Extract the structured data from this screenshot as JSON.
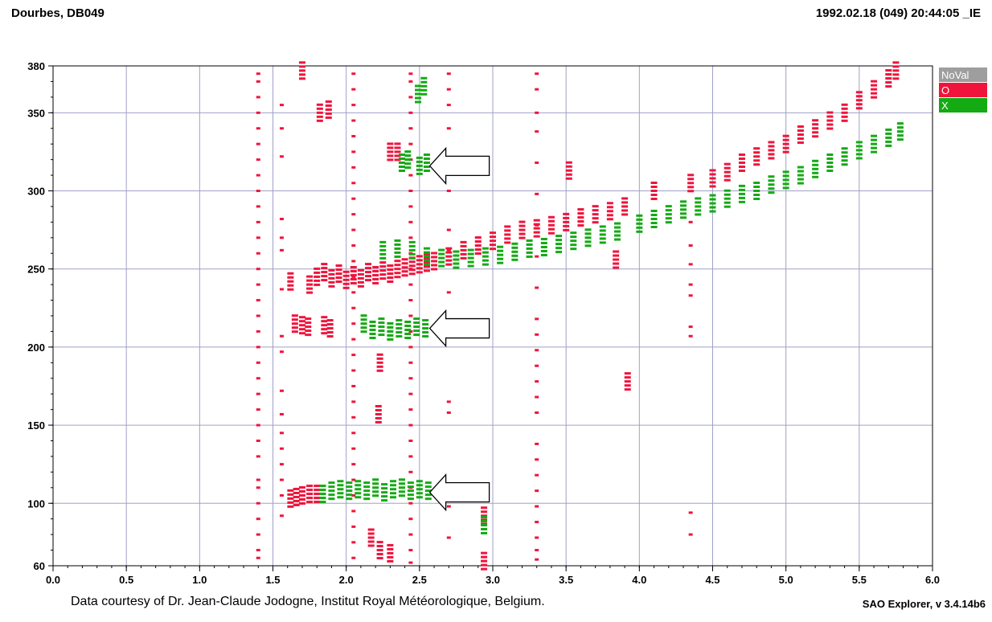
{
  "header": {
    "station": "Dourbes, DB049",
    "datetime": "1992.02.18 (049) 20:44:05 _IE"
  },
  "footer": {
    "credit": "Data courtesy of Dr. Jean-Claude Jodogne, Institut Royal Météorologique, Belgium.",
    "version": "SAO Explorer, v 3.4.14b6"
  },
  "legend": [
    {
      "label": "NoVal",
      "color": "#9e9e9e"
    },
    {
      "label": "O",
      "color": "#f0143c"
    },
    {
      "label": "X",
      "color": "#14aa14"
    }
  ],
  "chart_data": {
    "type": "scatter",
    "title": "",
    "xlabel": "",
    "ylabel": "",
    "xlim": [
      0.0,
      6.0
    ],
    "ylim": [
      60,
      380
    ],
    "x_ticks": [
      "0.0",
      "0.5",
      "1.0",
      "1.5",
      "2.0",
      "2.5",
      "3.0",
      "3.5",
      "4.0",
      "4.5",
      "5.0",
      "5.5",
      "6.0"
    ],
    "y_ticks": [
      "60",
      "100",
      "150",
      "200",
      "250",
      "300",
      "350",
      "380"
    ],
    "grid": true,
    "legend_position": "top-right outside",
    "vertical_traces_O": [
      {
        "x": 1.4,
        "h": [
          65,
          70,
          80,
          90,
          100,
          110,
          115,
          130,
          140,
          150,
          160,
          170,
          180,
          190,
          200,
          210,
          220,
          230,
          240,
          250,
          260,
          270,
          280,
          290,
          300,
          310,
          320,
          330,
          340,
          350,
          360,
          370,
          375
        ]
      },
      {
        "x": 1.56,
        "h": [
          92,
          105,
          115,
          125,
          135,
          145,
          157,
          172,
          197,
          207,
          237,
          262,
          270,
          282,
          322,
          340,
          355
        ]
      },
      {
        "x": 2.05,
        "h": [
          65,
          75,
          85,
          95,
          105,
          115,
          125,
          135,
          145,
          155,
          165,
          175,
          185,
          195,
          205,
          215,
          225,
          235,
          245,
          255,
          265,
          275,
          285,
          295,
          305,
          315,
          325,
          335,
          345,
          355,
          365,
          375
        ]
      },
      {
        "x": 2.44,
        "h": [
          62,
          70,
          80,
          90,
          100,
          110,
          120,
          130,
          140,
          150,
          160,
          170,
          180,
          190,
          200,
          210,
          220,
          230,
          240,
          250,
          260,
          270,
          280,
          290,
          300,
          310,
          320,
          330,
          340,
          350,
          360,
          370,
          375
        ]
      },
      {
        "x": 2.7,
        "h": [
          78,
          98,
          158,
          165,
          235,
          262,
          275,
          300,
          320,
          340,
          355,
          365,
          375
        ]
      },
      {
        "x": 3.3,
        "h": [
          64,
          70,
          78,
          88,
          98,
          108,
          118,
          128,
          138,
          158,
          168,
          178,
          188,
          198,
          208,
          218,
          238,
          258,
          278,
          298,
          318,
          338,
          350,
          365,
          375
        ]
      },
      {
        "x": 4.35,
        "h": [
          80,
          94,
          207,
          213,
          233,
          240,
          253,
          265,
          280
        ]
      }
    ],
    "series": [
      {
        "name": "O",
        "color": "#f0143c",
        "points": [
          {
            "x": 1.75,
            "y": 240
          },
          {
            "x": 1.8,
            "y": 245
          },
          {
            "x": 1.85,
            "y": 248
          },
          {
            "x": 1.9,
            "y": 244
          },
          {
            "x": 1.95,
            "y": 247
          },
          {
            "x": 2.0,
            "y": 243
          },
          {
            "x": 2.05,
            "y": 246
          },
          {
            "x": 2.1,
            "y": 244
          },
          {
            "x": 2.15,
            "y": 248
          },
          {
            "x": 2.2,
            "y": 246
          },
          {
            "x": 2.25,
            "y": 249
          },
          {
            "x": 2.3,
            "y": 247
          },
          {
            "x": 2.35,
            "y": 250
          },
          {
            "x": 2.4,
            "y": 251
          },
          {
            "x": 2.45,
            "y": 252
          },
          {
            "x": 2.5,
            "y": 253
          },
          {
            "x": 2.55,
            "y": 254
          },
          {
            "x": 2.6,
            "y": 255
          },
          {
            "x": 2.7,
            "y": 258
          },
          {
            "x": 2.8,
            "y": 262
          },
          {
            "x": 2.9,
            "y": 265
          },
          {
            "x": 3.0,
            "y": 268
          },
          {
            "x": 3.1,
            "y": 272
          },
          {
            "x": 3.2,
            "y": 275
          },
          {
            "x": 3.3,
            "y": 276
          },
          {
            "x": 3.4,
            "y": 278
          },
          {
            "x": 3.5,
            "y": 280
          },
          {
            "x": 3.6,
            "y": 283
          },
          {
            "x": 3.7,
            "y": 285
          },
          {
            "x": 3.8,
            "y": 287
          },
          {
            "x": 3.9,
            "y": 290
          },
          {
            "x": 4.1,
            "y": 300
          },
          {
            "x": 4.35,
            "y": 305
          },
          {
            "x": 4.5,
            "y": 308
          },
          {
            "x": 4.6,
            "y": 312
          },
          {
            "x": 4.7,
            "y": 318
          },
          {
            "x": 4.8,
            "y": 322
          },
          {
            "x": 4.9,
            "y": 326
          },
          {
            "x": 5.0,
            "y": 330
          },
          {
            "x": 5.1,
            "y": 336
          },
          {
            "x": 5.2,
            "y": 340
          },
          {
            "x": 5.3,
            "y": 345
          },
          {
            "x": 5.4,
            "y": 350
          },
          {
            "x": 5.5,
            "y": 358
          },
          {
            "x": 5.6,
            "y": 365
          },
          {
            "x": 5.7,
            "y": 372
          },
          {
            "x": 5.75,
            "y": 377
          },
          {
            "x": 1.7,
            "y": 377
          },
          {
            "x": 1.82,
            "y": 350
          },
          {
            "x": 1.88,
            "y": 352
          },
          {
            "x": 1.62,
            "y": 242
          },
          {
            "x": 1.65,
            "y": 215
          },
          {
            "x": 1.7,
            "y": 214
          },
          {
            "x": 1.74,
            "y": 213
          },
          {
            "x": 1.85,
            "y": 214
          },
          {
            "x": 1.89,
            "y": 212
          },
          {
            "x": 2.22,
            "y": 157
          },
          {
            "x": 2.23,
            "y": 190
          },
          {
            "x": 2.3,
            "y": 325
          },
          {
            "x": 2.35,
            "y": 325
          },
          {
            "x": 1.62,
            "y": 103
          },
          {
            "x": 1.66,
            "y": 104
          },
          {
            "x": 1.7,
            "y": 105
          },
          {
            "x": 1.75,
            "y": 106
          },
          {
            "x": 1.8,
            "y": 106
          },
          {
            "x": 2.94,
            "y": 92
          },
          {
            "x": 2.94,
            "y": 63
          },
          {
            "x": 2.17,
            "y": 78
          },
          {
            "x": 2.23,
            "y": 70
          },
          {
            "x": 2.3,
            "y": 68
          },
          {
            "x": 3.52,
            "y": 313
          },
          {
            "x": 3.84,
            "y": 256
          },
          {
            "x": 3.92,
            "y": 178
          }
        ]
      },
      {
        "name": "X",
        "color": "#14aa14",
        "points": [
          {
            "x": 2.25,
            "y": 262
          },
          {
            "x": 2.35,
            "y": 263
          },
          {
            "x": 2.45,
            "y": 262
          },
          {
            "x": 2.55,
            "y": 258
          },
          {
            "x": 2.65,
            "y": 257
          },
          {
            "x": 2.75,
            "y": 256
          },
          {
            "x": 2.85,
            "y": 257
          },
          {
            "x": 2.95,
            "y": 258
          },
          {
            "x": 3.05,
            "y": 259
          },
          {
            "x": 3.15,
            "y": 261
          },
          {
            "x": 3.25,
            "y": 263
          },
          {
            "x": 3.35,
            "y": 264
          },
          {
            "x": 3.45,
            "y": 266
          },
          {
            "x": 3.55,
            "y": 268
          },
          {
            "x": 3.65,
            "y": 270
          },
          {
            "x": 3.75,
            "y": 272
          },
          {
            "x": 3.85,
            "y": 274
          },
          {
            "x": 4.0,
            "y": 279
          },
          {
            "x": 4.1,
            "y": 282
          },
          {
            "x": 4.2,
            "y": 285
          },
          {
            "x": 4.3,
            "y": 288
          },
          {
            "x": 4.4,
            "y": 290
          },
          {
            "x": 4.5,
            "y": 292
          },
          {
            "x": 4.6,
            "y": 295
          },
          {
            "x": 4.7,
            "y": 298
          },
          {
            "x": 4.8,
            "y": 300
          },
          {
            "x": 4.9,
            "y": 304
          },
          {
            "x": 5.0,
            "y": 307
          },
          {
            "x": 5.1,
            "y": 310
          },
          {
            "x": 5.2,
            "y": 314
          },
          {
            "x": 5.3,
            "y": 318
          },
          {
            "x": 5.4,
            "y": 322
          },
          {
            "x": 5.5,
            "y": 326
          },
          {
            "x": 5.6,
            "y": 330
          },
          {
            "x": 5.7,
            "y": 334
          },
          {
            "x": 5.78,
            "y": 338
          },
          {
            "x": 2.38,
            "y": 318
          },
          {
            "x": 2.42,
            "y": 320
          },
          {
            "x": 2.5,
            "y": 316
          },
          {
            "x": 2.55,
            "y": 318
          },
          {
            "x": 2.49,
            "y": 362
          },
          {
            "x": 2.53,
            "y": 367
          },
          {
            "x": 2.12,
            "y": 215
          },
          {
            "x": 2.18,
            "y": 211
          },
          {
            "x": 2.24,
            "y": 213
          },
          {
            "x": 2.3,
            "y": 210
          },
          {
            "x": 2.36,
            "y": 212
          },
          {
            "x": 2.42,
            "y": 211
          },
          {
            "x": 2.48,
            "y": 213
          },
          {
            "x": 2.54,
            "y": 212
          },
          {
            "x": 1.84,
            "y": 106
          },
          {
            "x": 1.9,
            "y": 108
          },
          {
            "x": 1.96,
            "y": 109
          },
          {
            "x": 2.02,
            "y": 108
          },
          {
            "x": 2.08,
            "y": 109
          },
          {
            "x": 2.14,
            "y": 108
          },
          {
            "x": 2.2,
            "y": 110
          },
          {
            "x": 2.26,
            "y": 107
          },
          {
            "x": 2.32,
            "y": 109
          },
          {
            "x": 2.38,
            "y": 110
          },
          {
            "x": 2.44,
            "y": 108
          },
          {
            "x": 2.5,
            "y": 109
          },
          {
            "x": 2.56,
            "y": 108
          },
          {
            "x": 2.94,
            "y": 86
          }
        ]
      }
    ],
    "arrows": [
      {
        "x": 2.57,
        "y": 316
      },
      {
        "x": 2.57,
        "y": 212
      },
      {
        "x": 2.57,
        "y": 107
      }
    ]
  }
}
